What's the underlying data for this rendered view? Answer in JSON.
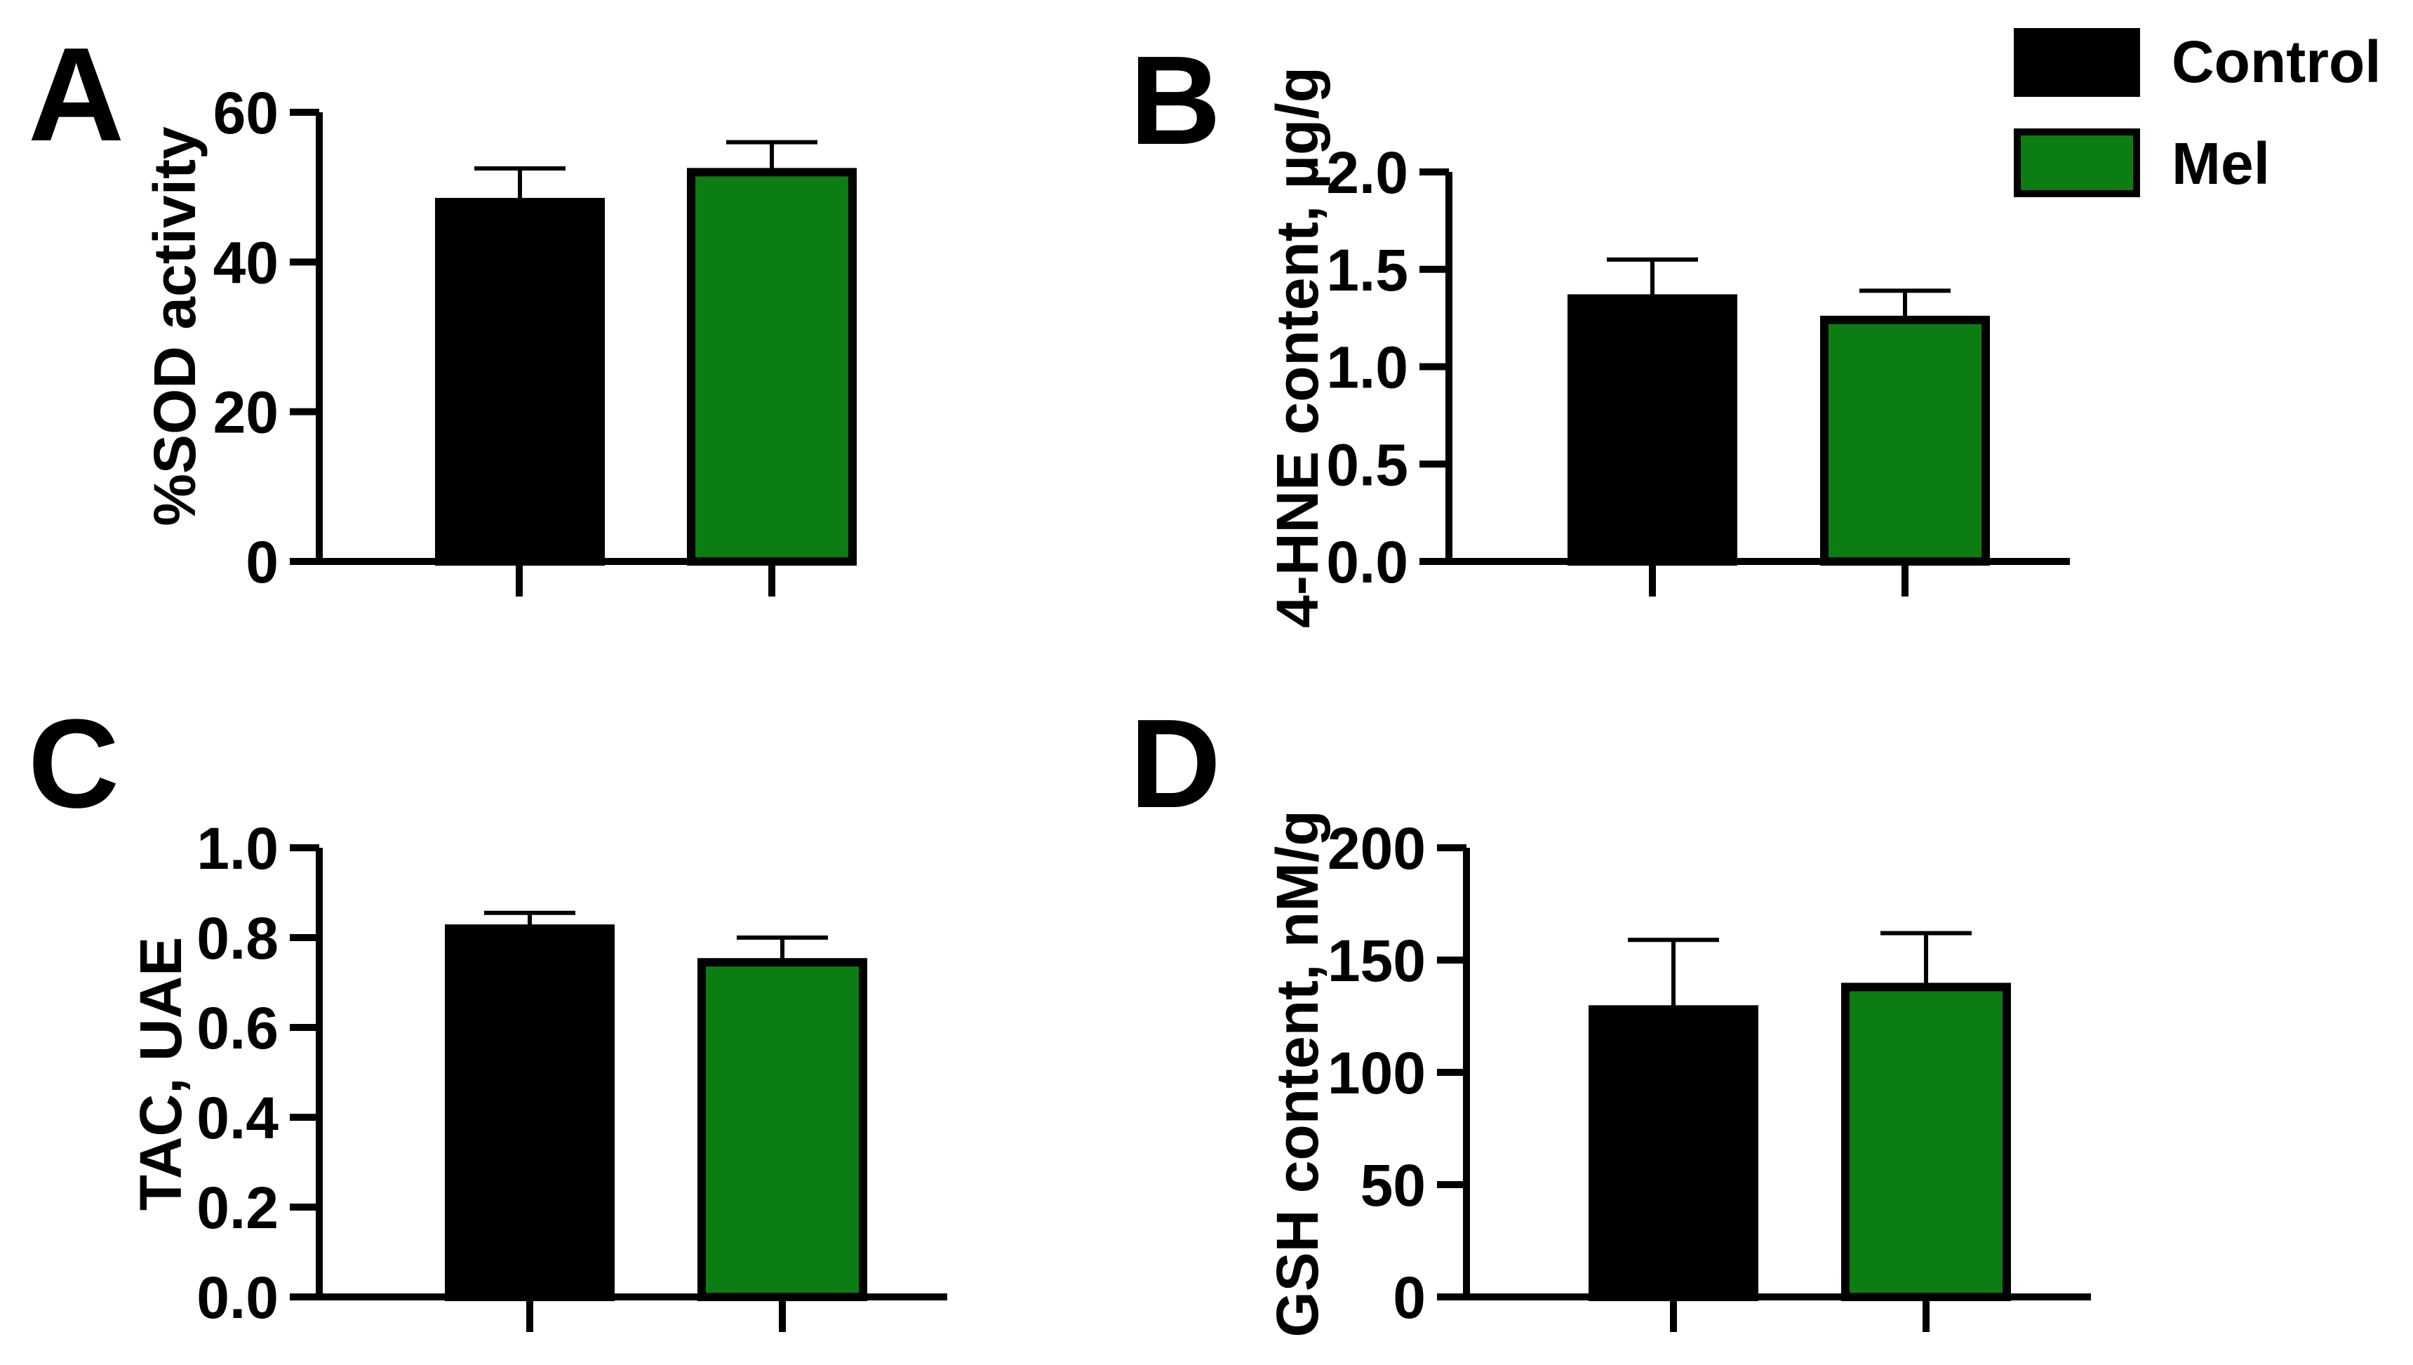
{
  "legend": {
    "position": "top-right",
    "entries": [
      {
        "label": "Control",
        "color": "#000000"
      },
      {
        "label": "Mel",
        "color": "#0b7d12"
      }
    ]
  },
  "chart_data": [
    {
      "type": "bar",
      "panel_label": "A",
      "title": "",
      "xlabel": "",
      "ylabel": "%SOD activity",
      "categories": [
        "Control",
        "Mel"
      ],
      "values": [
        48,
        52
      ],
      "errors": [
        4.5,
        4
      ],
      "colors": [
        "#000000",
        "#0b7d12"
      ],
      "ylim": [
        0,
        60
      ],
      "yticks": [
        0,
        20,
        40,
        60
      ],
      "ytick_labels": [
        "0",
        "20",
        "40",
        "60"
      ]
    },
    {
      "type": "bar",
      "panel_label": "B",
      "title": "",
      "xlabel": "",
      "ylabel": "4-HNE content, µg/g",
      "categories": [
        "Control",
        "Mel"
      ],
      "values": [
        1.35,
        1.24
      ],
      "errors": [
        0.2,
        0.15
      ],
      "colors": [
        "#000000",
        "#0b7d12"
      ],
      "ylim": [
        0,
        2.0
      ],
      "yticks": [
        0,
        0.5,
        1.0,
        1.5,
        2.0
      ],
      "ytick_labels": [
        "0.0",
        "0.5",
        "1.0",
        "1.5",
        "2.0"
      ]
    },
    {
      "type": "bar",
      "panel_label": "C",
      "title": "",
      "xlabel": "",
      "ylabel": "TAC, UAE",
      "categories": [
        "Control",
        "Mel"
      ],
      "values": [
        0.82,
        0.745
      ],
      "errors": [
        0.035,
        0.055
      ],
      "colors": [
        "#000000",
        "#0b7d12"
      ],
      "ylim": [
        0,
        1.0
      ],
      "yticks": [
        0,
        0.2,
        0.4,
        0.6,
        0.8,
        1.0
      ],
      "ytick_labels": [
        "0.0",
        "0.2",
        "0.4",
        "0.6",
        "0.8",
        "1.0"
      ]
    },
    {
      "type": "bar",
      "panel_label": "D",
      "title": "",
      "xlabel": "",
      "ylabel": "GSH content, nM/g",
      "categories": [
        "Control",
        "Mel"
      ],
      "values": [
        128,
        138
      ],
      "errors": [
        31,
        24
      ],
      "colors": [
        "#000000",
        "#0b7d12"
      ],
      "ylim": [
        0,
        200
      ],
      "yticks": [
        0,
        50,
        100,
        150,
        200
      ],
      "ytick_labels": [
        "0",
        "50",
        "100",
        "150",
        "200"
      ]
    }
  ]
}
